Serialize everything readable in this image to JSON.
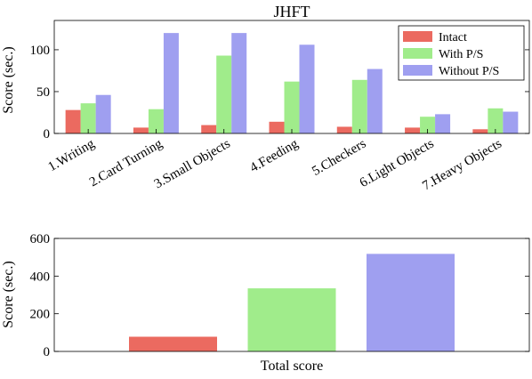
{
  "chart_data": [
    {
      "type": "bar",
      "title": "JHFT",
      "xlabel": "",
      "ylabel": "Score (sec.)",
      "ylim": [
        0,
        135
      ],
      "yticks": [
        0,
        50,
        100
      ],
      "grid": false,
      "legend_position": "top-right",
      "categories": [
        "1.Writing",
        "2.Card Turning",
        "3.Small Objects",
        "4.Feeding",
        "5.Checkers",
        "6.Light Objects",
        "7.Heavy Objects"
      ],
      "series": [
        {
          "name": "Intact",
          "color": "#eb6a60",
          "values": [
            28,
            7,
            10,
            14,
            8,
            7,
            5
          ]
        },
        {
          "name": "With P/S",
          "color": "#a0ec8b",
          "values": [
            36,
            29,
            93,
            62,
            64,
            20,
            30
          ]
        },
        {
          "name": "Without P/S",
          "color": "#9f9ff0",
          "values": [
            46,
            120,
            120,
            106,
            77,
            23,
            26
          ]
        }
      ]
    },
    {
      "type": "bar",
      "title": "",
      "xlabel": "Total score",
      "ylabel": "Score (sec.)",
      "ylim": [
        0,
        600
      ],
      "yticks": [
        0,
        200,
        400,
        600
      ],
      "grid": false,
      "categories": [
        "Intact",
        "With P/S",
        "Without P/S"
      ],
      "values": [
        78,
        335,
        518
      ],
      "colors": [
        "#eb6a60",
        "#a0ec8b",
        "#9f9ff0"
      ]
    }
  ]
}
